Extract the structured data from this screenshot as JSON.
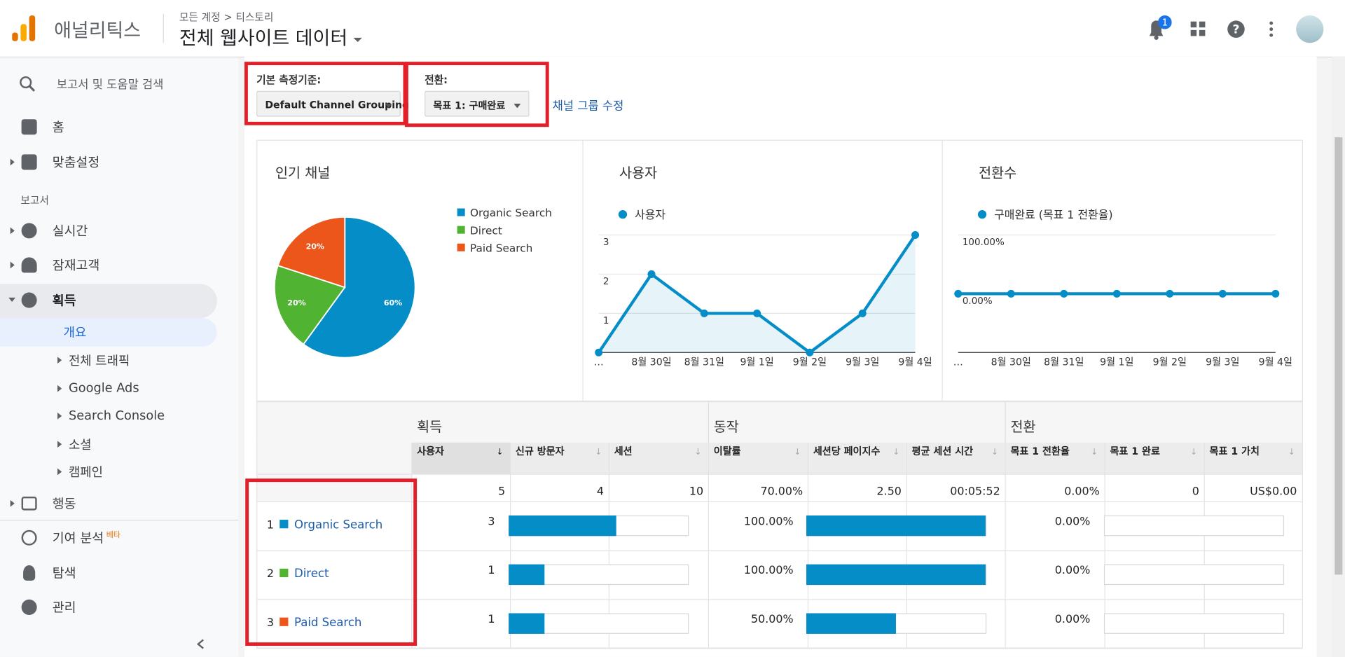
{
  "header": {
    "app_name": "애널리틱스",
    "breadcrumb": [
      "모든 계정",
      "티스토리"
    ],
    "view_name": "전체 웹사이트 데이터",
    "notification_count": 1
  },
  "sidebar": {
    "search_placeholder": "보고서 및 도움말 검색",
    "home": "홈",
    "customization": "맞춤설정",
    "reports_heading": "보고서",
    "realtime": "실시간",
    "audience": "잠재고객",
    "acquisition": "획득",
    "acquisition_items": [
      "개요",
      "전체 트래픽",
      "Google Ads",
      "Search Console",
      "소셜",
      "캠페인"
    ],
    "behavior": "행동",
    "attribution": "기여 분석",
    "attribution_badge": "베타",
    "discover": "탐색",
    "admin": "관리"
  },
  "controls": {
    "primary_label": "기본 측정기준:",
    "primary_value": "Default Channel Grouping",
    "conversion_label": "전환:",
    "conversion_value": "목표 1: 구매완료",
    "edit_link": "채널 그룹 수정"
  },
  "chart_data": [
    {
      "type": "pie",
      "title": "인기 채널",
      "categories": [
        "Organic Search",
        "Direct",
        "Paid Search"
      ],
      "values": [
        60,
        20,
        20
      ],
      "value_labels": [
        "60%",
        "20%",
        "20%"
      ],
      "colors": [
        "#058dc7",
        "#50b432",
        "#ed561b"
      ]
    },
    {
      "type": "line",
      "title": "사용자",
      "categories": [
        "…",
        "8월 30일",
        "8월 31일",
        "9월 1일",
        "9월 2일",
        "9월 3일",
        "9월 4일"
      ],
      "series": [
        {
          "name": "사용자",
          "color": "#058dc7",
          "values": [
            0,
            2,
            1,
            1,
            0,
            1,
            3
          ]
        }
      ],
      "ylim": [
        0,
        3
      ],
      "yticks": [
        1,
        2,
        3
      ],
      "grid": true,
      "area": true
    },
    {
      "type": "line",
      "title": "전환수",
      "categories": [
        "…",
        "8월 30일",
        "8월 31일",
        "9월 1일",
        "9월 2일",
        "9월 3일",
        "9월 4일"
      ],
      "series": [
        {
          "name": "구매완료 (목표 1 전환율)",
          "color": "#058dc7",
          "values": [
            0,
            0,
            0,
            0,
            0,
            0,
            0
          ]
        }
      ],
      "ylim": [
        -100,
        100
      ],
      "yticks": [
        {
          "value": 100,
          "label": "100.00%"
        },
        {
          "value": 0,
          "label": "0.00%"
        }
      ],
      "grid": true,
      "area": false
    }
  ],
  "table": {
    "groups": [
      "획득",
      "동작",
      "전환"
    ],
    "columns": [
      "사용자",
      "신규 방문자",
      "세션",
      "이탈률",
      "세션당 페이지수",
      "평균 세션 시간",
      "목표 1 전환율",
      "목표 1 완료",
      "목표 1 가치"
    ],
    "totals": [
      5,
      4,
      10,
      "70.00%",
      "2.50",
      "00:05:52",
      "0.00%",
      0,
      "US$0.00"
    ],
    "rows": [
      {
        "rank": 1,
        "channel": "Organic Search",
        "color": "#058dc7",
        "users": 3,
        "bounce_rate": {
          "value": 100,
          "label": "100.00%"
        },
        "conversion_rate": {
          "value": 0,
          "label": "0.00%"
        }
      },
      {
        "rank": 2,
        "channel": "Direct",
        "color": "#50b432",
        "users": 1,
        "bounce_rate": {
          "value": 100,
          "label": "100.00%"
        },
        "conversion_rate": {
          "value": 0,
          "label": "0.00%"
        }
      },
      {
        "rank": 3,
        "channel": "Paid Search",
        "color": "#ed561b",
        "users": 1,
        "bounce_rate": {
          "value": 50,
          "label": "50.00%"
        },
        "conversion_rate": {
          "value": 0,
          "label": "0.00%"
        }
      }
    ]
  }
}
